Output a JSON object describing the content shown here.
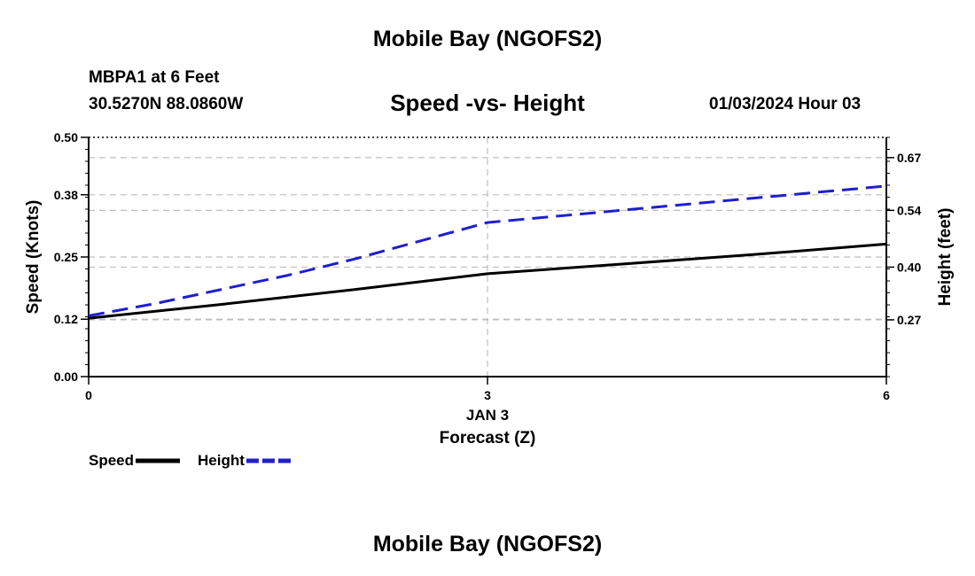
{
  "header": {
    "title": "Mobile Bay (NGOFS2)",
    "station": "MBPA1 at 6 Feet",
    "coords": "30.5270N  88.0860W",
    "subtitle": "Speed -vs- Height",
    "datetime": "01/03/2024 Hour 03"
  },
  "footer": {
    "title": "Mobile Bay (NGOFS2)"
  },
  "chart_data": {
    "type": "line",
    "title": "Speed -vs- Height",
    "xlabel": "Forecast (Z)",
    "x_date_label": "JAN 3",
    "ylabel_left": "Speed (Knots)",
    "ylabel_right": "Height (feet)",
    "xlim": [
      0,
      6
    ],
    "x_ticks": [
      0,
      3,
      6
    ],
    "x_tick_labels": [
      "0",
      "3",
      "6"
    ],
    "ylim_left": [
      0.0,
      0.5
    ],
    "y_left_ticks": [
      0.0,
      0.12,
      0.25,
      0.38,
      0.5
    ],
    "y_left_tick_labels": [
      "0.00",
      "0.12",
      "0.25",
      "0.38",
      "0.50"
    ],
    "ylim_right": [
      0.13,
      0.72
    ],
    "y_right_ticks": [
      0.27,
      0.4,
      0.54,
      0.67
    ],
    "y_right_tick_labels": [
      "0.27",
      "0.40",
      "0.54",
      "0.67"
    ],
    "grid": true,
    "legend_position": "bottom-left",
    "series": [
      {
        "name": "Speed",
        "axis": "left",
        "color": "#000000",
        "style": "solid",
        "x": [
          0,
          1,
          2,
          3,
          4,
          5,
          6
        ],
        "values": [
          0.122,
          0.151,
          0.182,
          0.215,
          0.235,
          0.255,
          0.277
        ]
      },
      {
        "name": "Height",
        "axis": "right",
        "color": "#1f1fcc",
        "style": "dashed",
        "x": [
          0,
          0.5,
          1,
          1.5,
          2,
          2.5,
          3,
          4,
          5,
          6
        ],
        "values": [
          0.28,
          0.31,
          0.345,
          0.38,
          0.42,
          0.465,
          0.51,
          0.54,
          0.57,
          0.6
        ]
      }
    ]
  }
}
